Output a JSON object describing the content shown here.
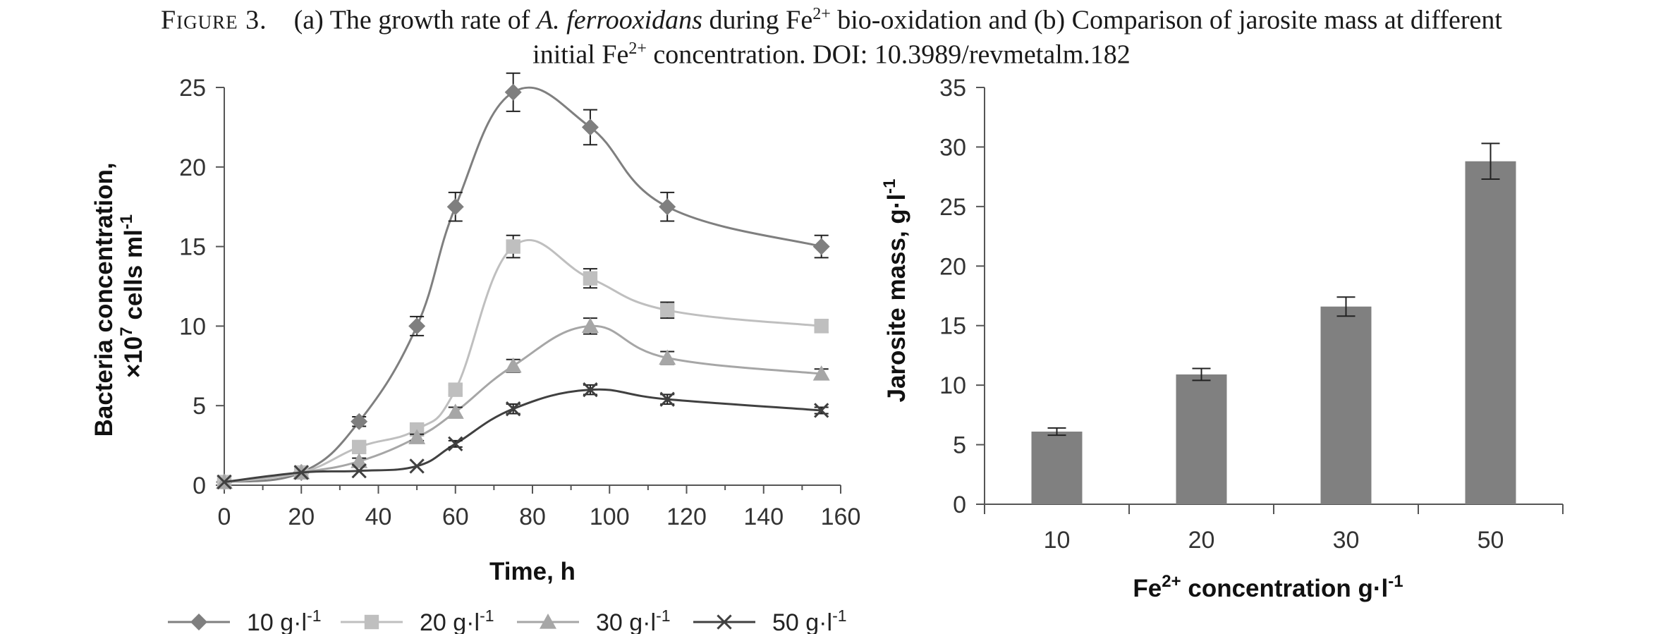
{
  "caption": {
    "label": "Figure 3.",
    "part1": "(a) The growth rate of ",
    "species": "A. ferrooxidans",
    "part2": " during Fe",
    "sup1": "2+",
    "part3": " bio-oxidation and (b) Comparison of jarosite mass at different",
    "line2a": "initial Fe",
    "sup2": "2+",
    "line2b": " concentration. DOI: 10.3989/revmetalm.182"
  },
  "chart_data": [
    {
      "type": "line",
      "panel": "a",
      "xlabel": "Time, h",
      "ylabel_line1": "Bacteria concentration,",
      "ylabel_line2_base": "×10",
      "ylabel_line2_sup": "7",
      "ylabel_line2_rest": " cells ml",
      "ylabel_line2_sup2": "-1",
      "xlim": [
        0,
        160
      ],
      "ylim": [
        0,
        25
      ],
      "xticks": [
        0,
        20,
        40,
        60,
        80,
        100,
        120,
        140,
        160
      ],
      "yticks": [
        0,
        5,
        10,
        15,
        20,
        25
      ],
      "legend_position": "bottom",
      "series": [
        {
          "name": "10 g·l",
          "name_sup": "-1",
          "marker": "diamond",
          "color": "#7f7f7f",
          "x": [
            0,
            20,
            35,
            50,
            60,
            75,
            95,
            115,
            155
          ],
          "y": [
            0.2,
            0.8,
            4.0,
            10.0,
            17.5,
            24.7,
            22.5,
            17.5,
            15.0
          ],
          "err": [
            0.1,
            0.1,
            0.3,
            0.6,
            0.9,
            1.2,
            1.1,
            0.9,
            0.7
          ]
        },
        {
          "name": "20 g·l",
          "name_sup": "-1",
          "marker": "square",
          "color": "#bfbfbf",
          "x": [
            0,
            20,
            35,
            50,
            60,
            75,
            95,
            115,
            155
          ],
          "y": [
            0.2,
            0.8,
            2.4,
            3.5,
            6.0,
            15.0,
            13.0,
            11.0,
            10.0
          ],
          "err": [
            0.1,
            0.1,
            0.2,
            0.3,
            0.3,
            0.7,
            0.6,
            0.5,
            0.4
          ]
        },
        {
          "name": "30 g·l",
          "name_sup": "-1",
          "marker": "triangle",
          "color": "#a6a6a6",
          "x": [
            0,
            20,
            35,
            50,
            60,
            75,
            95,
            115,
            155
          ],
          "y": [
            0.2,
            0.8,
            1.5,
            3.0,
            4.6,
            7.5,
            10.0,
            8.0,
            7.0
          ],
          "err": [
            0.1,
            0.1,
            0.2,
            0.2,
            0.3,
            0.4,
            0.5,
            0.4,
            0.3
          ]
        },
        {
          "name": "50 g·l",
          "name_sup": "-1",
          "marker": "x",
          "color": "#404040",
          "x": [
            0,
            20,
            35,
            50,
            60,
            75,
            95,
            115,
            155
          ],
          "y": [
            0.2,
            0.8,
            0.9,
            1.2,
            2.6,
            4.8,
            6.0,
            5.4,
            4.7
          ],
          "err": [
            0.1,
            0.1,
            0.1,
            0.1,
            0.2,
            0.3,
            0.3,
            0.3,
            0.2
          ]
        }
      ]
    },
    {
      "type": "bar",
      "panel": "b",
      "xlabel_pre": "Fe",
      "xlabel_sup": "2+",
      "xlabel_mid": " concentration g·l",
      "xlabel_sup2": "-1",
      "ylabel_base": "Jarosite mass, g·l",
      "ylabel_sup": "-1",
      "categories": [
        "10",
        "20",
        "30",
        "50"
      ],
      "values": [
        6.1,
        10.9,
        16.6,
        28.8
      ],
      "err": [
        0.3,
        0.5,
        0.8,
        1.5
      ],
      "ylim": [
        0,
        35
      ],
      "yticks": [
        0,
        5,
        10,
        15,
        20,
        25,
        30,
        35
      ],
      "color": "#808080"
    }
  ]
}
